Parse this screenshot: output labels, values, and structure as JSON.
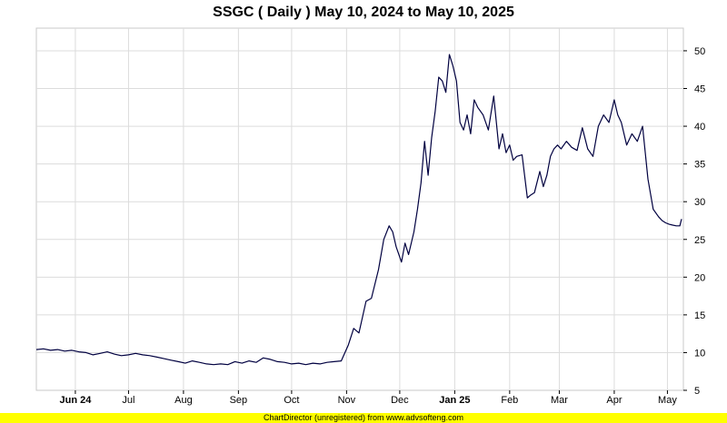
{
  "chart_data": {
    "type": "line",
    "title": "SSGC ( Daily ) May 10, 2024 to May 10, 2025",
    "ylim": [
      5,
      53
    ],
    "yticks": [
      5,
      10,
      15,
      20,
      25,
      30,
      35,
      40,
      45,
      50
    ],
    "grid": true,
    "x_range": [
      "2024-05-10",
      "2025-05-10"
    ],
    "xticks": [
      {
        "label": "Jun 24",
        "date": "2024-06-01",
        "bold": true
      },
      {
        "label": "Jul",
        "date": "2024-07-01",
        "bold": false
      },
      {
        "label": "Aug",
        "date": "2024-08-01",
        "bold": false
      },
      {
        "label": "Sep",
        "date": "2024-09-01",
        "bold": false
      },
      {
        "label": "Oct",
        "date": "2024-10-01",
        "bold": false
      },
      {
        "label": "Nov",
        "date": "2024-11-01",
        "bold": false
      },
      {
        "label": "Dec",
        "date": "2024-12-01",
        "bold": false
      },
      {
        "label": "Jan 25",
        "date": "2025-01-01",
        "bold": true
      },
      {
        "label": "Feb",
        "date": "2025-02-01",
        "bold": false
      },
      {
        "label": "Mar",
        "date": "2025-03-01",
        "bold": false
      },
      {
        "label": "Apr",
        "date": "2025-04-01",
        "bold": false
      },
      {
        "label": "May",
        "date": "2025-05-01",
        "bold": false
      }
    ],
    "line_color": "#000040",
    "series": [
      {
        "x": [
          "2024-05-10",
          "2024-05-14",
          "2024-05-18",
          "2024-05-22",
          "2024-05-26",
          "2024-05-30",
          "2024-06-03",
          "2024-06-07",
          "2024-06-11",
          "2024-06-15",
          "2024-06-19",
          "2024-06-23",
          "2024-06-27",
          "2024-07-01",
          "2024-07-05",
          "2024-07-09",
          "2024-07-13",
          "2024-07-17",
          "2024-07-21",
          "2024-07-25",
          "2024-07-29",
          "2024-08-02",
          "2024-08-06",
          "2024-08-10",
          "2024-08-14",
          "2024-08-18",
          "2024-08-22",
          "2024-08-26",
          "2024-08-30",
          "2024-09-03",
          "2024-09-07",
          "2024-09-11",
          "2024-09-15",
          "2024-09-19",
          "2024-09-23",
          "2024-09-27",
          "2024-10-01",
          "2024-10-05",
          "2024-10-09",
          "2024-10-13",
          "2024-10-17",
          "2024-10-21",
          "2024-10-25",
          "2024-10-29",
          "2024-11-02",
          "2024-11-05",
          "2024-11-08",
          "2024-11-12",
          "2024-11-15",
          "2024-11-19",
          "2024-11-22",
          "2024-11-25",
          "2024-11-27",
          "2024-11-29",
          "2024-12-02",
          "2024-12-04",
          "2024-12-06",
          "2024-12-09",
          "2024-12-11",
          "2024-12-13",
          "2024-12-15",
          "2024-12-17",
          "2024-12-19",
          "2024-12-21",
          "2024-12-23",
          "2024-12-25",
          "2024-12-27",
          "2024-12-29",
          "2024-12-31",
          "2025-01-02",
          "2025-01-04",
          "2025-01-06",
          "2025-01-08",
          "2025-01-10",
          "2025-01-12",
          "2025-01-14",
          "2025-01-17",
          "2025-01-20",
          "2025-01-23",
          "2025-01-26",
          "2025-01-28",
          "2025-01-30",
          "2025-02-01",
          "2025-02-03",
          "2025-02-05",
          "2025-02-08",
          "2025-02-11",
          "2025-02-13",
          "2025-02-15",
          "2025-02-18",
          "2025-02-20",
          "2025-02-22",
          "2025-02-24",
          "2025-02-26",
          "2025-02-28",
          "2025-03-02",
          "2025-03-05",
          "2025-03-08",
          "2025-03-11",
          "2025-03-14",
          "2025-03-17",
          "2025-03-20",
          "2025-03-23",
          "2025-03-26",
          "2025-03-29",
          "2025-04-01",
          "2025-04-03",
          "2025-04-05",
          "2025-04-08",
          "2025-04-11",
          "2025-04-14",
          "2025-04-17",
          "2025-04-20",
          "2025-04-23",
          "2025-04-26",
          "2025-04-28",
          "2025-04-30",
          "2025-05-02",
          "2025-05-04",
          "2025-05-06",
          "2025-05-08",
          "2025-05-09"
        ],
        "values": [
          10.4,
          10.5,
          10.3,
          10.4,
          10.2,
          10.3,
          10.1,
          10.0,
          9.7,
          9.9,
          10.1,
          9.8,
          9.6,
          9.7,
          9.9,
          9.7,
          9.6,
          9.4,
          9.2,
          9.0,
          8.8,
          8.6,
          8.9,
          8.7,
          8.5,
          8.4,
          8.5,
          8.4,
          8.8,
          8.6,
          8.9,
          8.7,
          9.3,
          9.1,
          8.8,
          8.7,
          8.5,
          8.6,
          8.4,
          8.6,
          8.5,
          8.7,
          8.8,
          8.9,
          11.0,
          13.2,
          12.6,
          16.8,
          17.2,
          21.0,
          25.0,
          26.8,
          26.0,
          24.0,
          22.0,
          24.5,
          23.0,
          26.0,
          29.0,
          32.5,
          38.0,
          33.5,
          38.5,
          42.0,
          46.5,
          46.0,
          44.5,
          49.5,
          48.0,
          46.0,
          40.5,
          39.5,
          41.5,
          39.0,
          43.5,
          42.5,
          41.5,
          39.5,
          44.0,
          37.0,
          39.0,
          36.5,
          37.5,
          35.5,
          36.0,
          36.2,
          30.5,
          30.9,
          31.2,
          34.0,
          32.0,
          33.5,
          36.0,
          37.0,
          37.5,
          37.0,
          38.0,
          37.2,
          36.8,
          39.8,
          37.0,
          36.0,
          40.0,
          41.5,
          40.5,
          43.5,
          41.5,
          40.5,
          37.5,
          39.0,
          38.0,
          40.0,
          33.0,
          29.0,
          28.0,
          27.5,
          27.2,
          27.0,
          26.9,
          26.8,
          26.8,
          27.7
        ]
      }
    ]
  },
  "footer": {
    "text": "ChartDirector (unregistered) from www.advsofteng.com"
  }
}
